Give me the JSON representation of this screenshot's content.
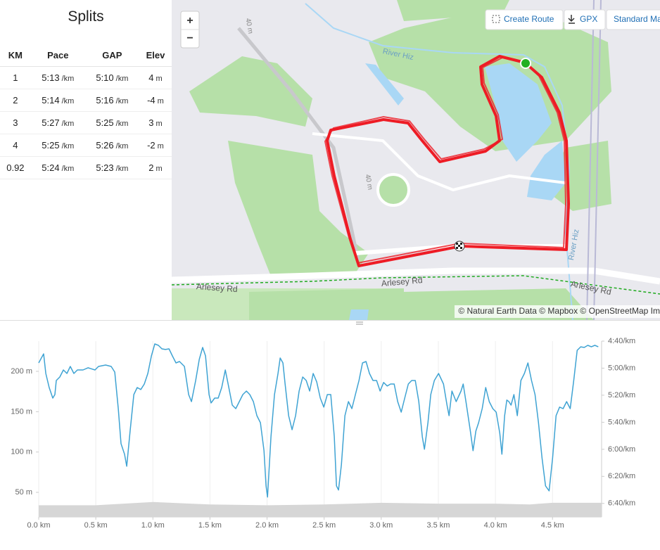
{
  "splits": {
    "title": "Splits",
    "headers": [
      "KM",
      "Pace",
      "GAP",
      "Elev"
    ],
    "units": {
      "pace": "/km",
      "gap": "/km",
      "elev": "m"
    },
    "rows": [
      {
        "km": "1",
        "pace": "5:13",
        "gap": "5:10",
        "elev": "4"
      },
      {
        "km": "2",
        "pace": "5:14",
        "gap": "5:16",
        "elev": "-4"
      },
      {
        "km": "3",
        "pace": "5:27",
        "gap": "5:25",
        "elev": "3"
      },
      {
        "km": "4",
        "pace": "5:25",
        "gap": "5:26",
        "elev": "-2"
      },
      {
        "km": "0.92",
        "pace": "5:24",
        "gap": "5:23",
        "elev": "2"
      }
    ]
  },
  "map": {
    "zoom_in": "+",
    "zoom_out": "−",
    "buttons": [
      "Create Route",
      "GPX",
      "Standard Ma"
    ],
    "labels": [
      "River Hiz",
      "River Hiz",
      "40 m",
      "40 m",
      "Arlesey Rd",
      "Arlesey Rd",
      "Arlesey Rd"
    ],
    "attribution": "© Natural Earth Data © Mapbox © OpenStreetMap Im"
  },
  "chart_data": {
    "type": "line",
    "xlim": [
      0,
      4.93
    ],
    "xticks": [
      {
        "value": 0,
        "label": "0.0 km"
      },
      {
        "value": 0.5,
        "label": "0.5 km"
      },
      {
        "value": 1,
        "label": "1.0 km"
      },
      {
        "value": 1.5,
        "label": "1.5 km"
      },
      {
        "value": 2,
        "label": "2.0 km"
      },
      {
        "value": 2.5,
        "label": "2.5 km"
      },
      {
        "value": 3,
        "label": "3.0 km"
      },
      {
        "value": 3.5,
        "label": "3.5 km"
      },
      {
        "value": 4,
        "label": "4.0 km"
      },
      {
        "value": 4.5,
        "label": "4.5 km"
      }
    ],
    "ylim": [
      19.5,
      237.5
    ],
    "yticks": [
      {
        "value": 50,
        "label": "50 m"
      },
      {
        "value": 100,
        "label": "100 m"
      },
      {
        "value": 150,
        "label": "150 m"
      },
      {
        "value": 200,
        "label": "200 m"
      }
    ],
    "y2lim": [
      410,
      280
    ],
    "y2ticks": [
      {
        "value": 280,
        "label": "4:40/km"
      },
      {
        "value": 300,
        "label": "5:00/km"
      },
      {
        "value": 320,
        "label": "5:20/km"
      },
      {
        "value": 340,
        "label": "5:40/km"
      },
      {
        "value": 360,
        "label": "6:00/km"
      },
      {
        "value": 380,
        "label": "6:20/km"
      },
      {
        "value": 400,
        "label": "6:40/km"
      }
    ],
    "grid": "x",
    "series": [
      {
        "color": "#d6d6d6",
        "fill": true,
        "x": [
          0,
          0.5,
          1.0,
          1.5,
          2.0,
          2.5,
          3.0,
          3.5,
          4.0,
          4.3,
          4.5,
          4.93
        ],
        "values": [
          34,
          34,
          38,
          35,
          34,
          35,
          37,
          36,
          36,
          35,
          37,
          37
        ]
      },
      {
        "color": "#3fa3d3",
        "axis": "y2",
        "x": [
          0,
          0.043,
          0.062,
          0.092,
          0.123,
          0.142,
          0.154,
          0.185,
          0.216,
          0.247,
          0.277,
          0.308,
          0.339,
          0.388,
          0.432,
          0.493,
          0.524,
          0.586,
          0.635,
          0.666,
          0.697,
          0.721,
          0.752,
          0.771,
          0.802,
          0.833,
          0.863,
          0.894,
          0.925,
          0.956,
          0.987,
          1.017,
          1.048,
          1.079,
          1.11,
          1.141,
          1.171,
          1.202,
          1.233,
          1.276,
          1.313,
          1.338,
          1.375,
          1.406,
          1.436,
          1.461,
          1.492,
          1.51,
          1.541,
          1.572,
          1.603,
          1.634,
          1.665,
          1.695,
          1.726,
          1.757,
          1.788,
          1.819,
          1.849,
          1.88,
          1.911,
          1.942,
          1.973,
          1.991,
          2.004,
          2.034,
          2.065,
          2.096,
          2.115,
          2.139,
          2.158,
          2.189,
          2.219,
          2.25,
          2.281,
          2.312,
          2.343,
          2.373,
          2.404,
          2.435,
          2.466,
          2.497,
          2.528,
          2.558,
          2.589,
          2.608,
          2.626,
          2.651,
          2.682,
          2.713,
          2.743,
          2.774,
          2.805,
          2.836,
          2.867,
          2.897,
          2.928,
          2.959,
          2.99,
          3.021,
          3.052,
          3.082,
          3.113,
          3.144,
          3.175,
          3.206,
          3.237,
          3.267,
          3.298,
          3.329,
          3.36,
          3.378,
          3.409,
          3.434,
          3.465,
          3.502,
          3.545,
          3.576,
          3.594,
          3.619,
          3.656,
          3.699,
          3.718,
          3.742,
          3.779,
          3.804,
          3.829,
          3.853,
          3.884,
          3.915,
          3.946,
          3.977,
          4.007,
          4.038,
          4.057,
          4.081,
          4.1,
          4.118,
          4.137,
          4.162,
          4.192,
          4.223,
          4.254,
          4.285,
          4.316,
          4.347,
          4.377,
          4.408,
          4.439,
          4.47,
          4.501,
          4.531,
          4.562,
          4.593,
          4.624,
          4.655,
          4.686,
          4.716,
          4.747,
          4.778,
          4.809,
          4.84,
          4.871,
          4.901
        ],
        "values": [
          296.1,
          289.4,
          303.9,
          314.3,
          322.1,
          319.5,
          309.1,
          306.5,
          301.3,
          303.9,
          298.7,
          303.9,
          301.3,
          301.3,
          299.7,
          301.3,
          298.7,
          297.7,
          298.7,
          302.9,
          329.9,
          355.8,
          363.6,
          372.5,
          345.5,
          319.5,
          314.3,
          315.8,
          311.7,
          303.9,
          290.9,
          282.1,
          283.1,
          285.7,
          286.2,
          285.7,
          290.9,
          296.1,
          295.1,
          298.7,
          319.5,
          324.7,
          309.1,
          293.5,
          284.7,
          290.9,
          319.5,
          325.7,
          322.1,
          322.1,
          314.3,
          301.3,
          314.3,
          327.3,
          329.9,
          324.7,
          319.5,
          316.9,
          319.5,
          324.7,
          335.1,
          340.3,
          361.0,
          387.0,
          395.3,
          350.7,
          319.5,
          303.9,
          292.5,
          296.1,
          311.7,
          335.1,
          345.5,
          335.1,
          316.9,
          306.5,
          309.1,
          316.9,
          303.9,
          310.1,
          322.1,
          328.8,
          319.5,
          319.5,
          350.7,
          387.0,
          390.1,
          371.4,
          335.1,
          324.7,
          329.9,
          319.5,
          309.1,
          296.1,
          295.1,
          303.9,
          309.1,
          309.1,
          316.9,
          310.6,
          313.2,
          311.7,
          311.7,
          324.7,
          332.5,
          322.1,
          311.7,
          309.1,
          309.1,
          324.7,
          350.7,
          360.0,
          340.3,
          319.5,
          309.1,
          303.9,
          311.7,
          327.3,
          335.1,
          316.9,
          324.7,
          316.9,
          311.7,
          324.7,
          345.5,
          361.0,
          346.5,
          340.3,
          329.9,
          314.3,
          324.7,
          329.9,
          332.5,
          348.1,
          363.6,
          335.1,
          323.6,
          324.7,
          327.3,
          319.5,
          335.1,
          309.1,
          303.9,
          296.1,
          309.1,
          319.5,
          340.3,
          366.2,
          387.0,
          390.7,
          366.2,
          335.1,
          328.8,
          329.9,
          324.7,
          329.9,
          309.1,
          286.8,
          284.2,
          284.7,
          283.1,
          284.2,
          283.1,
          284.2
        ]
      }
    ]
  }
}
